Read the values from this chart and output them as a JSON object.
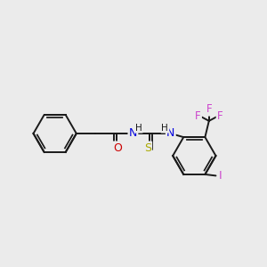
{
  "background_color": "#ebebeb",
  "bond_color": "#1a1a1a",
  "figsize": [
    3.0,
    3.0
  ],
  "dpi": 100,
  "atoms": {
    "O_color": "#cc0000",
    "N_color": "#0000dd",
    "S_color": "#aaaa00",
    "F_color": "#cc44cc",
    "I_color": "#cc44cc",
    "C_color": "#1a1a1a"
  },
  "layout": {
    "xlim": [
      0,
      10
    ],
    "ylim": [
      0,
      10
    ]
  }
}
